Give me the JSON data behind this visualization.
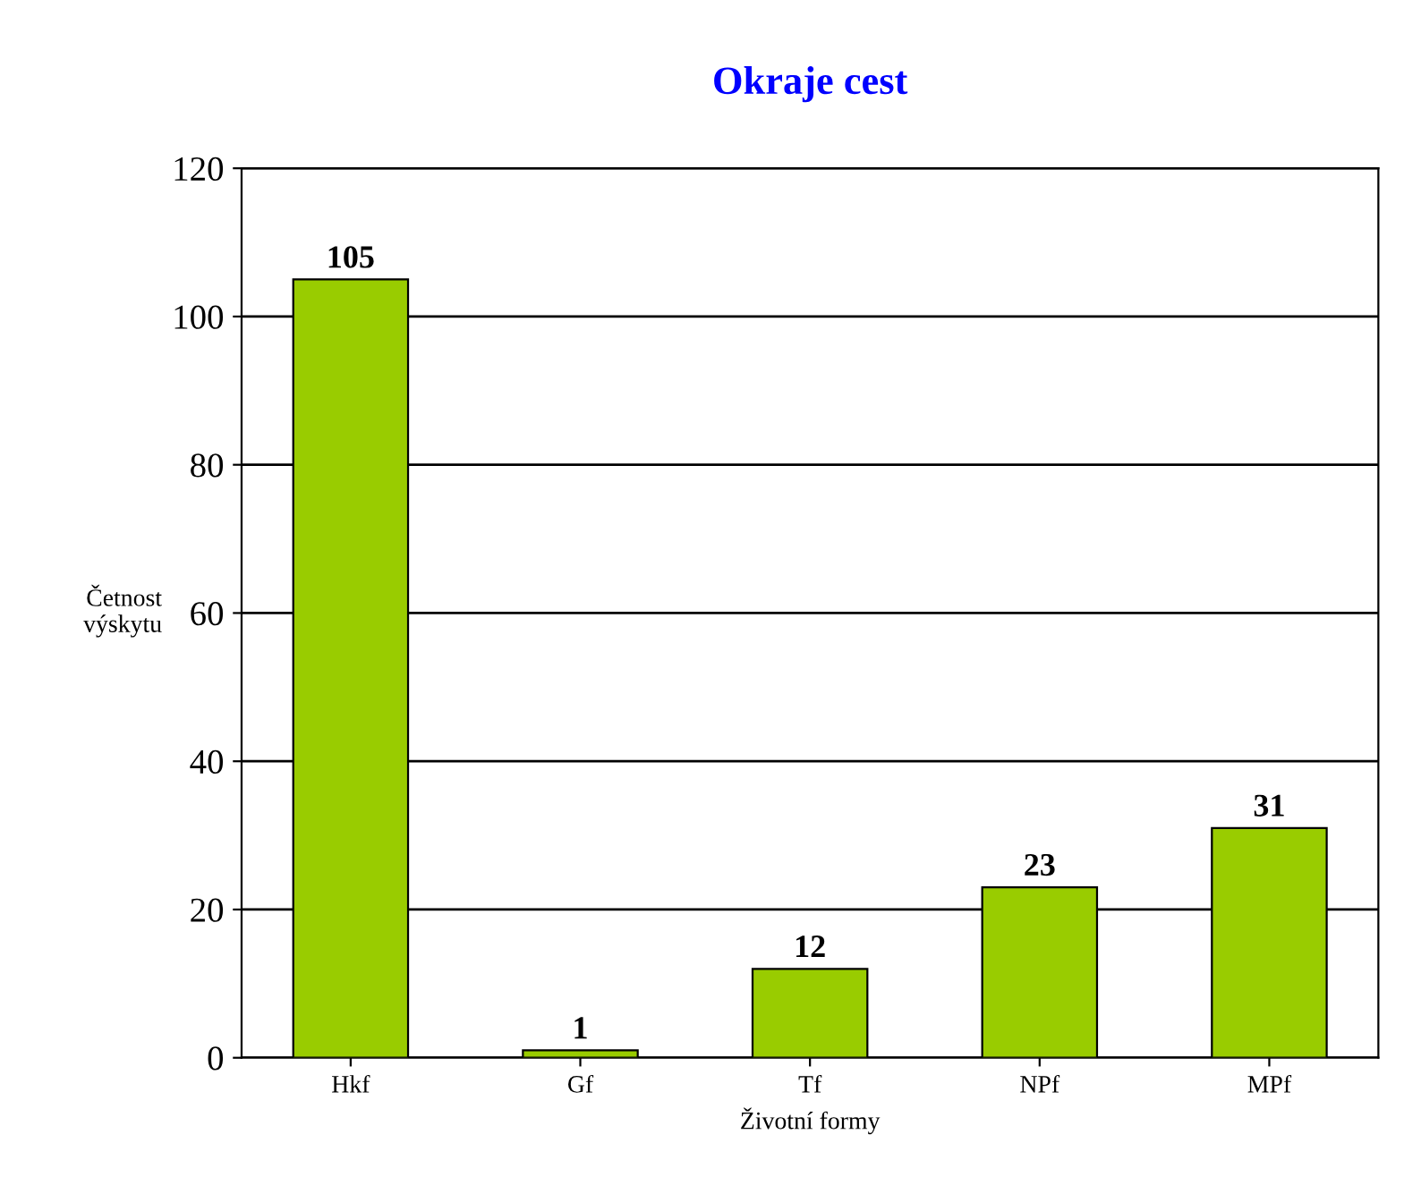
{
  "chart_data": {
    "type": "bar",
    "title": "Okraje cest",
    "xlabel": "Životní formy",
    "ylabel": "Četnost\nvýskytu",
    "categories": [
      "Hkf",
      "Gf",
      "Tf",
      "NPf",
      "MPf"
    ],
    "values": [
      105,
      1,
      12,
      23,
      31
    ],
    "color": "#99cc00",
    "ylim": [
      0,
      120
    ],
    "yticks": [
      0,
      20,
      40,
      60,
      80,
      100,
      120
    ],
    "grid": "y",
    "data_labels": true
  }
}
